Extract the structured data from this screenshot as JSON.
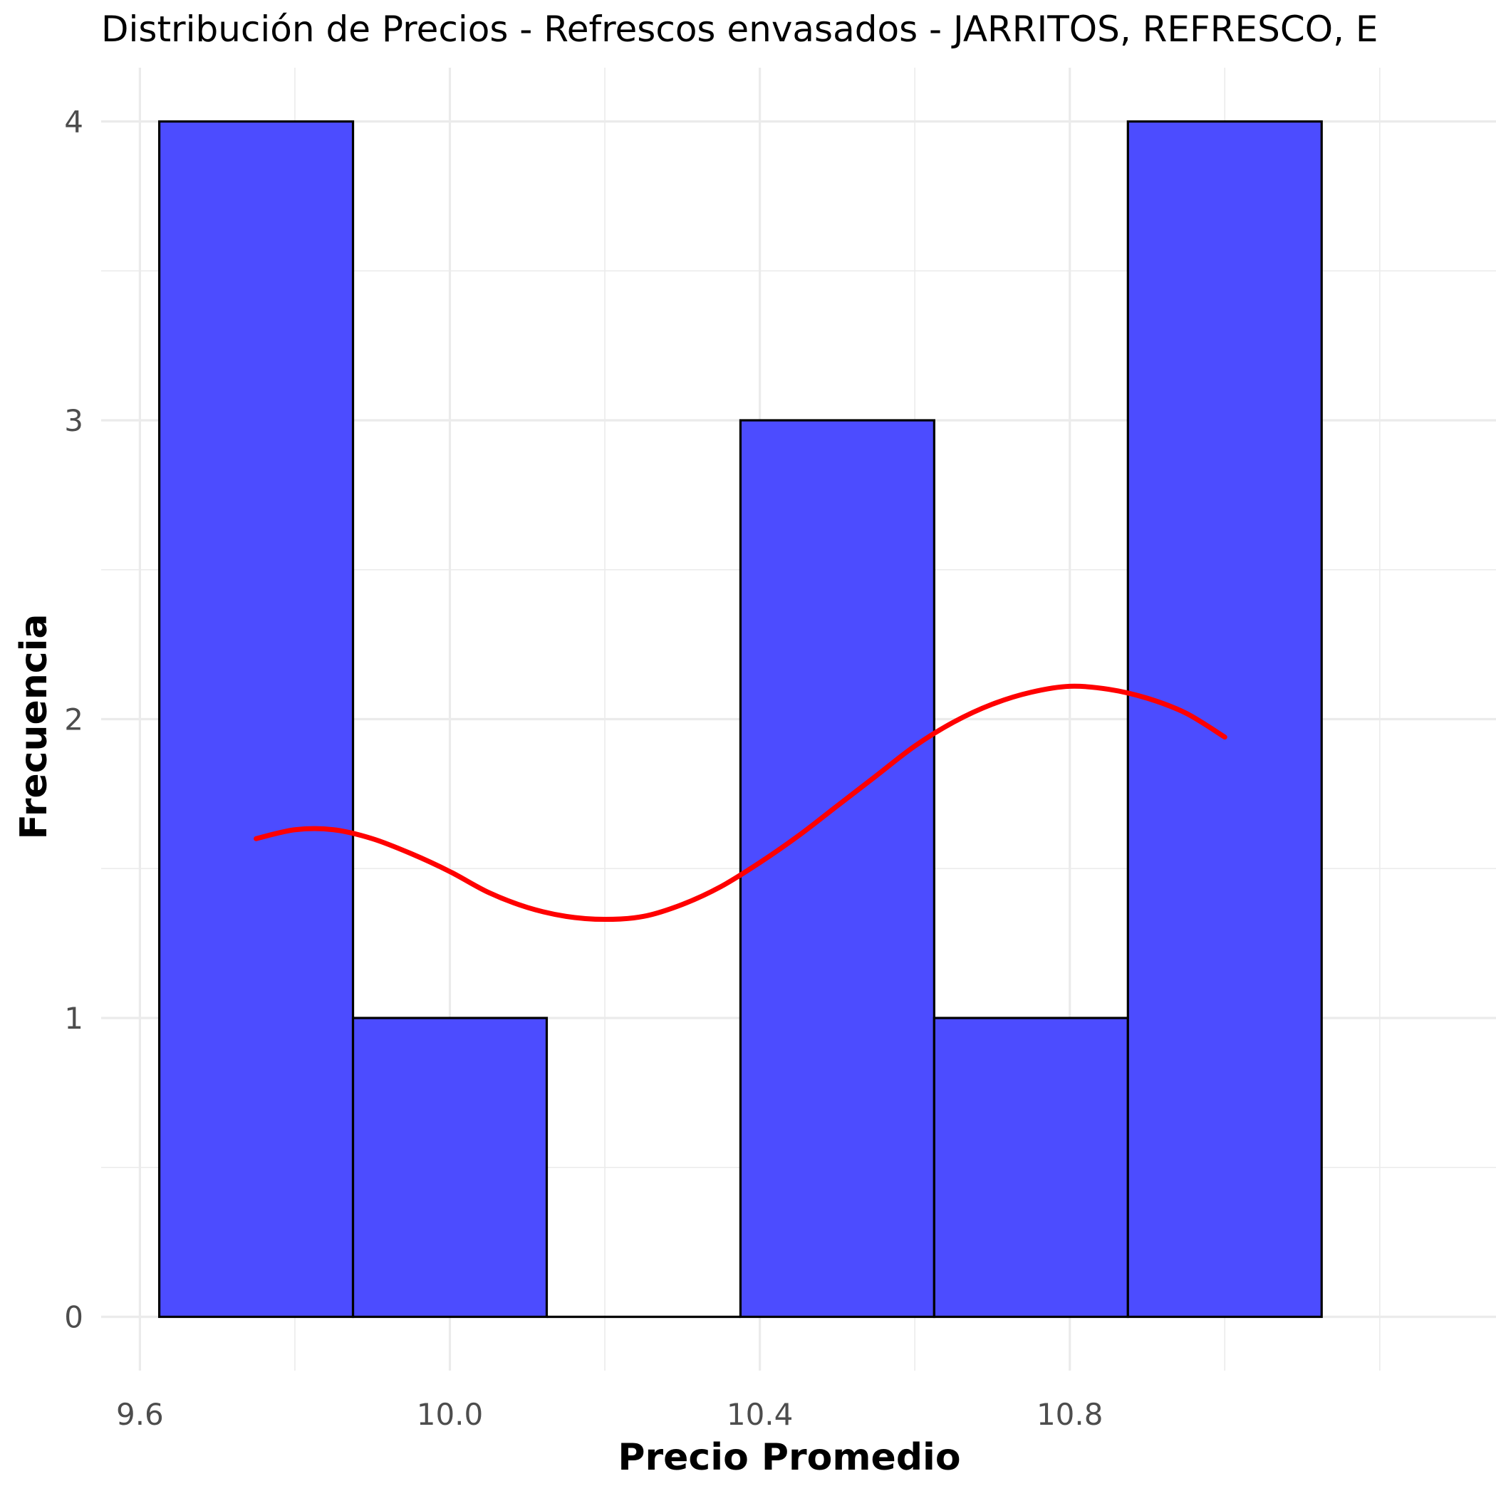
{
  "chart_data": {
    "type": "bar",
    "subtype": "histogram",
    "title": "Distribución de Precios - Refrescos envasados - JARRITOS, REFRESCO, E",
    "xlabel": "Precio Promedio",
    "ylabel": "Frecuencia",
    "xlim": [
      9.55,
      11.35
    ],
    "ylim": [
      -0.18,
      4.18
    ],
    "x_ticks": [
      9.6,
      10.0,
      10.4,
      10.8
    ],
    "x_tick_labels": [
      "9.6",
      "10.0",
      "10.4",
      "10.8"
    ],
    "y_ticks": [
      0,
      1,
      2,
      3,
      4
    ],
    "y_tick_labels": [
      "0",
      "1",
      "2",
      "3",
      "4"
    ],
    "bins": [
      {
        "x_start": 9.625,
        "x_end": 9.875,
        "count": 4
      },
      {
        "x_start": 9.875,
        "x_end": 10.125,
        "count": 1
      },
      {
        "x_start": 10.125,
        "x_end": 10.375,
        "count": 0
      },
      {
        "x_start": 10.375,
        "x_end": 10.625,
        "count": 3
      },
      {
        "x_start": 10.625,
        "x_end": 10.875,
        "count": 1
      },
      {
        "x_start": 10.875,
        "x_end": 11.125,
        "count": 4
      }
    ],
    "density_curve": {
      "x": [
        9.75,
        9.8,
        9.85,
        9.9,
        9.95,
        10.0,
        10.05,
        10.1,
        10.15,
        10.2,
        10.25,
        10.3,
        10.35,
        10.4,
        10.45,
        10.5,
        10.55,
        10.6,
        10.65,
        10.7,
        10.75,
        10.8,
        10.85,
        10.9,
        10.95,
        11.0
      ],
      "y": [
        1.6,
        1.63,
        1.63,
        1.6,
        1.55,
        1.49,
        1.42,
        1.37,
        1.34,
        1.33,
        1.34,
        1.38,
        1.44,
        1.52,
        1.61,
        1.71,
        1.81,
        1.91,
        1.99,
        2.05,
        2.09,
        2.11,
        2.1,
        2.07,
        2.02,
        1.94
      ]
    },
    "grid": true,
    "legend": "none",
    "colors": {
      "bar_fill": "#4c4cff",
      "bar_stroke": "#000000",
      "curve": "#ff0000",
      "grid": "#ebebeb",
      "tick_text": "#4d4d4d"
    }
  }
}
